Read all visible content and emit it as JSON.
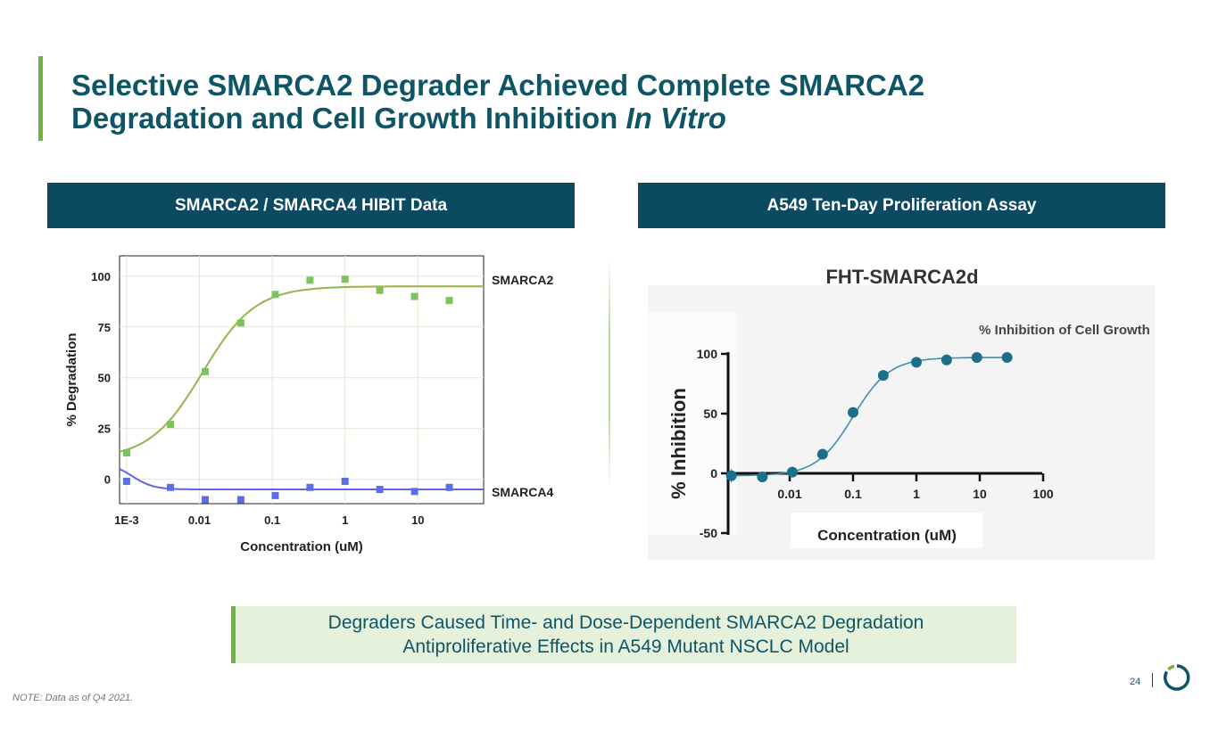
{
  "title": {
    "line1": "Selective SMARCA2 Degrader Achieved Complete SMARCA2",
    "line2_plain": "Degradation and Cell Growth Inhibition ",
    "line2_italic": "In Vitro"
  },
  "panels": {
    "left_header": "SMARCA2 / SMARCA4 HIBIT Data",
    "right_header": "A549 Ten-Day Proliferation Assay"
  },
  "callout": {
    "line1": "Degraders Caused Time- and Dose-Dependent SMARCA2 Degradation",
    "line2": "Antiproliferative Effects in A549 Mutant NSCLC Model"
  },
  "note": "NOTE: Data as of Q4 2021.",
  "page_number": "24",
  "colors": {
    "title": "#0e5566",
    "accent_green": "#6db33f",
    "header_bg": "#0c4a62",
    "callout_bg": "#e6f1db",
    "logo_dark": "#0e5566",
    "logo_green": "#6db33f"
  },
  "chart_data": [
    {
      "type": "scatter",
      "xlabel": "Concentration (uM)",
      "ylabel": "% Degradation",
      "x_scale": "log",
      "xlim": [
        0.0008,
        80
      ],
      "ylim": [
        -12,
        110
      ],
      "x_ticks": [
        {
          "value": 0.001,
          "label": "1E-3"
        },
        {
          "value": 0.01,
          "label": "0.01"
        },
        {
          "value": 0.1,
          "label": "0.1"
        },
        {
          "value": 1,
          "label": "1"
        },
        {
          "value": 10,
          "label": "10"
        }
      ],
      "y_ticks": [
        0,
        25,
        50,
        75,
        100
      ],
      "grid": true,
      "series": [
        {
          "name": "SMARCA2",
          "color": "#7dc35b",
          "curve_color": "#c99a2a",
          "x": [
            0.001,
            0.004,
            0.012,
            0.037,
            0.11,
            0.33,
            1.0,
            3.0,
            9.0,
            27.0
          ],
          "y": [
            13,
            27,
            53,
            77,
            91,
            98,
            98.5,
            93,
            90,
            88
          ],
          "fit": {
            "bottom": 10,
            "top": 95,
            "ec50": 0.011,
            "hill": 1.2
          }
        },
        {
          "name": "SMARCA4",
          "color": "#5b6ee8",
          "curve_color": "#6a5ad8",
          "x": [
            0.001,
            0.004,
            0.012,
            0.037,
            0.11,
            0.33,
            1.0,
            3.0,
            9.0,
            27.0
          ],
          "y": [
            -1,
            -4,
            -10,
            -10,
            -8,
            -4,
            -1,
            -5,
            -6,
            -4
          ],
          "fit": {
            "bottom": -5,
            "top": 8,
            "ec50": 0.0012,
            "hill": -3
          }
        }
      ]
    },
    {
      "type": "scatter",
      "title": "FHT-SMARCA2d",
      "legend": "% Inhibition of Cell Growth",
      "xlabel": "Concentration (uM)",
      "ylabel": "% Inhibition",
      "x_scale": "log",
      "x_ticks": [
        {
          "value": 0.01,
          "label": "0.01"
        },
        {
          "value": 0.1,
          "label": "0.1"
        },
        {
          "value": 1,
          "label": "1"
        },
        {
          "value": 10,
          "label": "10"
        },
        {
          "value": 100,
          "label": "100"
        }
      ],
      "y_ticks": [
        {
          "value": 100,
          "label": "100"
        },
        {
          "value": 50,
          "label": "50"
        },
        {
          "value": 0,
          "label": "0"
        },
        {
          "value": -50,
          "label": "-50"
        }
      ],
      "series": [
        {
          "name": "% Inhibition of Cell Growth",
          "color": "#1a6f8a",
          "x": [
            0.0012,
            0.0037,
            0.011,
            0.033,
            0.1,
            0.3,
            1.0,
            3.0,
            9.0,
            27.0
          ],
          "y": [
            -2,
            -3,
            1,
            16,
            51,
            82,
            93,
            95,
            97,
            97
          ],
          "fit": {
            "bottom": -2,
            "top": 97,
            "ec50": 0.1,
            "hill": 1.5
          }
        }
      ]
    }
  ]
}
